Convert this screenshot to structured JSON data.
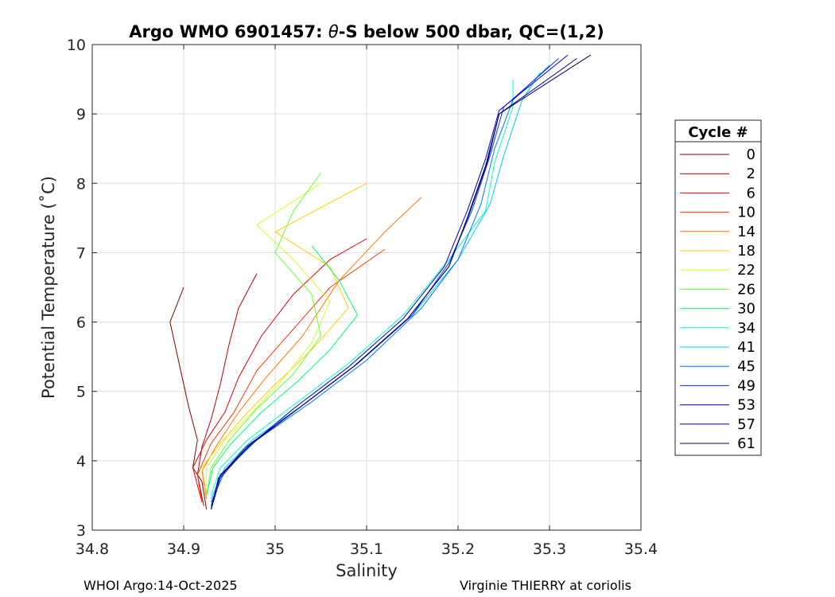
{
  "chart_data": {
    "type": "line",
    "title_prefix": "Argo WMO 6901457: ",
    "title_theta": "θ",
    "title_suffix": "-S below 500 dbar,  QC=(1,2)",
    "xlabel": "Salinity",
    "ylabel": "Potential Temperature (˚C)",
    "xlim": [
      34.8,
      35.4
    ],
    "ylim": [
      3,
      10
    ],
    "xticks": [
      34.8,
      34.9,
      35.0,
      35.1,
      35.2,
      35.3,
      35.4
    ],
    "xtick_labels": [
      "34.8",
      "34.9",
      "35",
      "35.1",
      "35.2",
      "35.3",
      "35.4"
    ],
    "yticks": [
      3,
      4,
      5,
      6,
      7,
      8,
      9,
      10
    ],
    "ytick_labels": [
      "3",
      "4",
      "5",
      "6",
      "7",
      "8",
      "9",
      "10"
    ],
    "grid": true,
    "legend_title": "Cycle #",
    "legend_position": "right",
    "series": [
      {
        "name": "0",
        "color": "#800000",
        "values": [
          [
            34.925,
            3.3
          ],
          [
            34.92,
            3.7
          ],
          [
            34.91,
            3.9
          ],
          [
            34.915,
            4.3
          ],
          [
            34.905,
            4.8
          ],
          [
            34.895,
            5.4
          ],
          [
            34.885,
            6.0
          ],
          [
            34.9,
            6.5
          ]
        ]
      },
      {
        "name": "2",
        "color": "#b30000",
        "values": [
          [
            34.922,
            3.35
          ],
          [
            34.915,
            3.8
          ],
          [
            34.92,
            4.2
          ],
          [
            34.93,
            4.6
          ],
          [
            34.94,
            5.1
          ],
          [
            34.95,
            5.7
          ],
          [
            34.96,
            6.2
          ],
          [
            34.98,
            6.7
          ]
        ]
      },
      {
        "name": "6",
        "color": "#e60000",
        "values": [
          [
            34.92,
            3.4
          ],
          [
            34.91,
            3.9
          ],
          [
            34.925,
            4.3
          ],
          [
            34.945,
            4.7
          ],
          [
            34.96,
            5.2
          ],
          [
            34.985,
            5.8
          ],
          [
            35.02,
            6.4
          ],
          [
            35.06,
            6.9
          ],
          [
            35.1,
            7.2
          ]
        ]
      },
      {
        "name": "10",
        "color": "#ff3300",
        "values": [
          [
            34.92,
            3.4
          ],
          [
            34.915,
            3.8
          ],
          [
            34.93,
            4.25
          ],
          [
            34.955,
            4.7
          ],
          [
            34.98,
            5.3
          ],
          [
            35.02,
            5.9
          ],
          [
            35.06,
            6.5
          ],
          [
            35.12,
            7.05
          ]
        ]
      },
      {
        "name": "14",
        "color": "#ff7700",
        "values": [
          [
            34.925,
            3.45
          ],
          [
            34.92,
            3.85
          ],
          [
            34.935,
            4.2
          ],
          [
            34.96,
            4.7
          ],
          [
            34.99,
            5.2
          ],
          [
            35.03,
            5.8
          ],
          [
            35.07,
            6.6
          ],
          [
            35.12,
            7.3
          ],
          [
            35.16,
            7.8
          ]
        ]
      },
      {
        "name": "18",
        "color": "#ffcc00",
        "values": [
          [
            34.925,
            3.5
          ],
          [
            34.92,
            3.9
          ],
          [
            34.94,
            4.25
          ],
          [
            34.97,
            4.7
          ],
          [
            35.0,
            5.1
          ],
          [
            35.04,
            5.6
          ],
          [
            35.08,
            6.2
          ],
          [
            35.06,
            6.8
          ],
          [
            35.0,
            7.3
          ],
          [
            35.1,
            8.0
          ]
        ]
      },
      {
        "name": "22",
        "color": "#ccff33",
        "values": [
          [
            34.925,
            3.5
          ],
          [
            34.925,
            3.9
          ],
          [
            34.945,
            4.3
          ],
          [
            34.975,
            4.7
          ],
          [
            35.01,
            5.2
          ],
          [
            35.04,
            5.7
          ],
          [
            35.06,
            6.3
          ],
          [
            35.02,
            6.9
          ],
          [
            34.98,
            7.4
          ],
          [
            35.05,
            8.0
          ]
        ]
      },
      {
        "name": "26",
        "color": "#66ff33",
        "values": [
          [
            34.925,
            3.5
          ],
          [
            34.93,
            3.9
          ],
          [
            34.95,
            4.3
          ],
          [
            34.98,
            4.75
          ],
          [
            35.02,
            5.25
          ],
          [
            35.05,
            5.8
          ],
          [
            35.04,
            6.4
          ],
          [
            35.0,
            7.0
          ],
          [
            35.02,
            7.6
          ],
          [
            35.05,
            8.15
          ]
        ]
      },
      {
        "name": "30",
        "color": "#00ff66",
        "values": [
          [
            34.925,
            3.5
          ],
          [
            34.932,
            3.9
          ],
          [
            34.952,
            4.25
          ],
          [
            34.985,
            4.7
          ],
          [
            35.025,
            5.15
          ],
          [
            35.06,
            5.6
          ],
          [
            35.09,
            6.1
          ],
          [
            35.07,
            6.6
          ],
          [
            35.04,
            7.1
          ]
        ]
      },
      {
        "name": "34",
        "color": "#00ffcc",
        "values": [
          [
            34.93,
            3.5
          ],
          [
            34.94,
            3.9
          ],
          [
            34.97,
            4.3
          ],
          [
            35.02,
            4.8
          ],
          [
            35.08,
            5.4
          ],
          [
            35.14,
            6.1
          ],
          [
            35.19,
            6.9
          ],
          [
            35.23,
            7.6
          ],
          [
            35.24,
            8.3
          ],
          [
            35.26,
            9.1
          ],
          [
            35.26,
            9.5
          ]
        ]
      },
      {
        "name": "41",
        "color": "#00ccff",
        "values": [
          [
            34.93,
            3.45
          ],
          [
            34.945,
            3.9
          ],
          [
            34.975,
            4.3
          ],
          [
            35.03,
            4.8
          ],
          [
            35.09,
            5.4
          ],
          [
            35.15,
            6.1
          ],
          [
            35.2,
            6.9
          ],
          [
            35.235,
            7.7
          ],
          [
            35.25,
            8.4
          ],
          [
            35.27,
            9.2
          ],
          [
            35.29,
            9.6
          ]
        ]
      },
      {
        "name": "45",
        "color": "#0077ff",
        "values": [
          [
            34.93,
            3.4
          ],
          [
            34.945,
            3.85
          ],
          [
            34.98,
            4.3
          ],
          [
            35.04,
            4.85
          ],
          [
            35.1,
            5.45
          ],
          [
            35.16,
            6.2
          ],
          [
            35.2,
            6.9
          ],
          [
            35.225,
            7.7
          ],
          [
            35.24,
            8.5
          ],
          [
            35.26,
            9.2
          ],
          [
            35.3,
            9.7
          ]
        ]
      },
      {
        "name": "49",
        "color": "#0033ff",
        "values": [
          [
            34.93,
            3.35
          ],
          [
            34.94,
            3.8
          ],
          [
            34.975,
            4.25
          ],
          [
            35.03,
            4.8
          ],
          [
            35.09,
            5.4
          ],
          [
            35.15,
            6.1
          ],
          [
            35.19,
            6.85
          ],
          [
            35.215,
            7.6
          ],
          [
            35.235,
            8.4
          ],
          [
            35.25,
            9.1
          ],
          [
            35.31,
            9.8
          ]
        ]
      },
      {
        "name": "53",
        "color": "#0000cc",
        "values": [
          [
            34.93,
            3.3
          ],
          [
            34.94,
            3.75
          ],
          [
            34.97,
            4.2
          ],
          [
            35.02,
            4.75
          ],
          [
            35.08,
            5.35
          ],
          [
            35.14,
            6.05
          ],
          [
            35.185,
            6.8
          ],
          [
            35.21,
            7.6
          ],
          [
            35.23,
            8.35
          ],
          [
            35.245,
            9.05
          ],
          [
            35.32,
            9.85
          ]
        ]
      },
      {
        "name": "57",
        "color": "#000099",
        "values": [
          [
            34.93,
            3.3
          ],
          [
            34.938,
            3.75
          ],
          [
            34.968,
            4.2
          ],
          [
            35.025,
            4.75
          ],
          [
            35.085,
            5.35
          ],
          [
            35.145,
            6.05
          ],
          [
            35.19,
            6.8
          ],
          [
            35.212,
            7.55
          ],
          [
            35.232,
            8.3
          ],
          [
            35.245,
            9.0
          ],
          [
            35.33,
            9.8
          ]
        ]
      },
      {
        "name": "61",
        "color": "#000066",
        "values": [
          [
            34.93,
            3.3
          ],
          [
            34.938,
            3.75
          ],
          [
            34.97,
            4.2
          ],
          [
            35.025,
            4.75
          ],
          [
            35.085,
            5.35
          ],
          [
            35.145,
            6.05
          ],
          [
            35.19,
            6.8
          ],
          [
            35.21,
            7.5
          ],
          [
            35.23,
            8.25
          ],
          [
            35.245,
            9.0
          ],
          [
            35.345,
            9.85
          ]
        ]
      }
    ]
  },
  "footer": {
    "left": "WHOI Argo:14-Oct-2025",
    "right": "Virginie THIERRY at coriolis"
  }
}
